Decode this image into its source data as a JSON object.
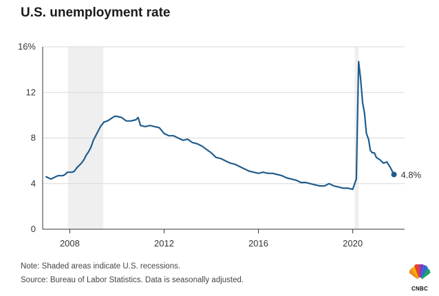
{
  "header": {
    "title": "U.S. unemployment rate"
  },
  "footer": {
    "note": "Note: Shaded areas indicate U.S. recessions.",
    "source": "Source: Bureau of Labor Statistics. Data is seasonally adjusted."
  },
  "brand": {
    "name": "CNBC",
    "logo_icon": "peacock-logo-icon"
  },
  "colors": {
    "line": "#1f5c8c",
    "recession": "#efefef",
    "grid": "#d9d9d9"
  },
  "chart_data": {
    "type": "line",
    "title": "U.S. unemployment rate",
    "xlabel": "",
    "ylabel": "",
    "xlim": [
      2006.85,
      2022.2
    ],
    "ylim": [
      0,
      16
    ],
    "yticks": [
      0,
      4,
      8,
      12,
      16
    ],
    "ytick_labels": [
      "0",
      "4",
      "8",
      "12",
      "16%"
    ],
    "xticks": [
      2008,
      2012,
      2016,
      2020
    ],
    "xtick_labels": [
      "2008",
      "2012",
      "2016",
      "2020"
    ],
    "grid": "horizontal",
    "recessions": [
      [
        2007.92,
        2009.42
      ],
      [
        2020.08,
        2020.25
      ]
    ],
    "end_label": "4.8%",
    "series": [
      {
        "x": [
          2007.0,
          2007.1,
          2007.2,
          2007.3,
          2007.4,
          2007.5,
          2007.6,
          2007.7,
          2007.8,
          2007.9,
          2008.0,
          2008.1,
          2008.2,
          2008.3,
          2008.4,
          2008.5,
          2008.6,
          2008.7,
          2008.8,
          2008.9,
          2009.0,
          2009.15,
          2009.3,
          2009.45,
          2009.6,
          2009.75,
          2009.9,
          2010.0,
          2010.2,
          2010.4,
          2010.6,
          2010.8,
          2010.9,
          2011.0,
          2011.2,
          2011.4,
          2011.6,
          2011.8,
          2012.0,
          2012.2,
          2012.4,
          2012.6,
          2012.8,
          2013.0,
          2013.2,
          2013.4,
          2013.6,
          2013.8,
          2014.0,
          2014.2,
          2014.4,
          2014.6,
          2014.8,
          2015.0,
          2015.2,
          2015.4,
          2015.6,
          2015.8,
          2016.0,
          2016.2,
          2016.4,
          2016.6,
          2016.8,
          2017.0,
          2017.2,
          2017.4,
          2017.6,
          2017.8,
          2018.0,
          2018.2,
          2018.4,
          2018.6,
          2018.8,
          2019.0,
          2019.2,
          2019.4,
          2019.6,
          2019.8,
          2020.0,
          2020.15,
          2020.25,
          2020.33,
          2020.42,
          2020.5,
          2020.58,
          2020.67,
          2020.75,
          2020.83,
          2020.92,
          2021.0,
          2021.15,
          2021.3,
          2021.45,
          2021.6,
          2021.75
        ],
        "y": [
          4.6,
          4.5,
          4.4,
          4.5,
          4.6,
          4.7,
          4.7,
          4.7,
          4.8,
          5.0,
          5.0,
          5.0,
          5.1,
          5.4,
          5.6,
          5.8,
          6.1,
          6.5,
          6.8,
          7.2,
          7.8,
          8.4,
          9.0,
          9.4,
          9.5,
          9.7,
          9.9,
          9.9,
          9.8,
          9.5,
          9.5,
          9.6,
          9.8,
          9.1,
          9.0,
          9.1,
          9.0,
          8.9,
          8.4,
          8.2,
          8.2,
          8.0,
          7.8,
          7.9,
          7.6,
          7.5,
          7.3,
          7.0,
          6.7,
          6.3,
          6.2,
          6.0,
          5.8,
          5.7,
          5.5,
          5.3,
          5.1,
          5.0,
          4.9,
          5.0,
          4.9,
          4.9,
          4.8,
          4.7,
          4.5,
          4.4,
          4.3,
          4.1,
          4.1,
          4.0,
          3.9,
          3.8,
          3.8,
          4.0,
          3.8,
          3.7,
          3.6,
          3.6,
          3.5,
          4.4,
          14.7,
          13.3,
          11.1,
          10.2,
          8.4,
          7.9,
          6.9,
          6.7,
          6.7,
          6.3,
          6.1,
          5.8,
          5.9,
          5.4,
          4.8
        ]
      }
    ]
  }
}
